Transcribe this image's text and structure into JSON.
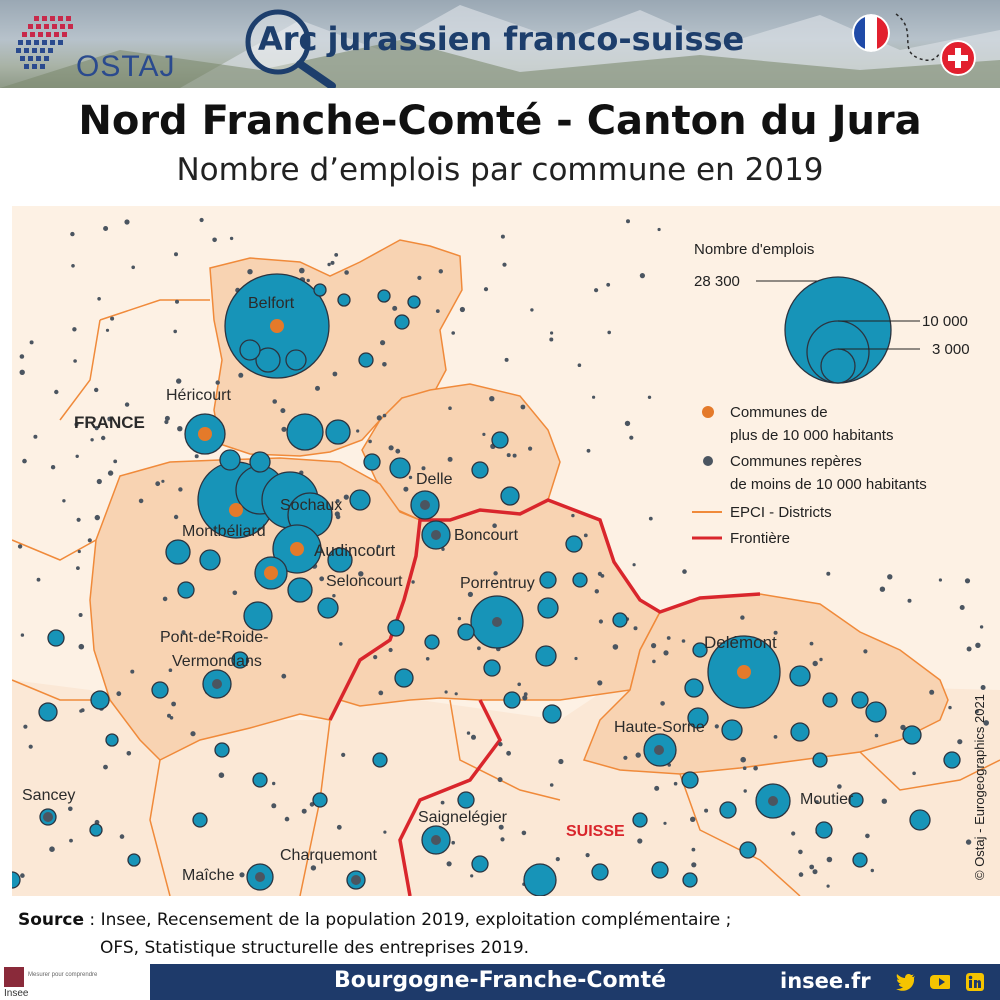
{
  "header": {
    "logo_text": "OSTAJ",
    "arc_word": "Arc",
    "arc_rest": "jurassien franco-suisse",
    "flag_france": "france-flag-icon",
    "flag_swiss": "swiss-flag-icon"
  },
  "title": "Nord Franche-Comté - Canton du Jura",
  "subtitle": "Nombre d’emplois par commune en 2019",
  "legend": {
    "title": "Nombre d'emplois",
    "size_values": [
      "28 300",
      "10 000",
      "3 000"
    ],
    "items": [
      "Communes de",
      "plus de 10 000 habitants",
      "Communes repères",
      "de moins de 10 000 habitants",
      "EPCI - Districts",
      "Frontière"
    ]
  },
  "map_labels": {
    "belfort": "Belfort",
    "hericourt": "Héricourt",
    "france": "FRANCE",
    "sochaux": "Sochaux",
    "montbeliard": "Montbéliard",
    "audincourt": "Audincourt",
    "seloncourt": "Seloncourt",
    "delle": "Delle",
    "boncourt": "Boncourt",
    "porrentruy": "Porrentruy",
    "pont_roide_1": "Pont-de-Roide-",
    "pont_roide_2": "Vermondans",
    "delemont": "Delémont",
    "haute_sorne": "Haute-Sorne",
    "moutier": "Moutier",
    "sancey": "Sancey",
    "saignelegier": "Saignelégier",
    "suisse": "SUISSE",
    "charquemont": "Charquemont",
    "maiche": "Maîche"
  },
  "colors": {
    "circle": "#1794b8",
    "big_city": "#e47a2a",
    "small_town": "#4b5560",
    "epci_fill": "#f8d3b2",
    "border": "#d9262c",
    "epci_line": "#f08a3a"
  },
  "copyright": "© Ostaj - Eurogeographics 2021",
  "source": {
    "label": "Source",
    "line1": " : Insee, Recensement de la population 2019, exploitation complémentaire ;",
    "line2": "OFS, Statistique structurelle des entreprises 2019."
  },
  "footer": {
    "insee": "Insee",
    "insee_tagline": "Mesurer pour comprendre",
    "region": "Bourgogne-Franche-Comté",
    "site": "insee.fr",
    "icons": [
      "twitter-icon",
      "youtube-icon",
      "linkedin-icon"
    ]
  }
}
